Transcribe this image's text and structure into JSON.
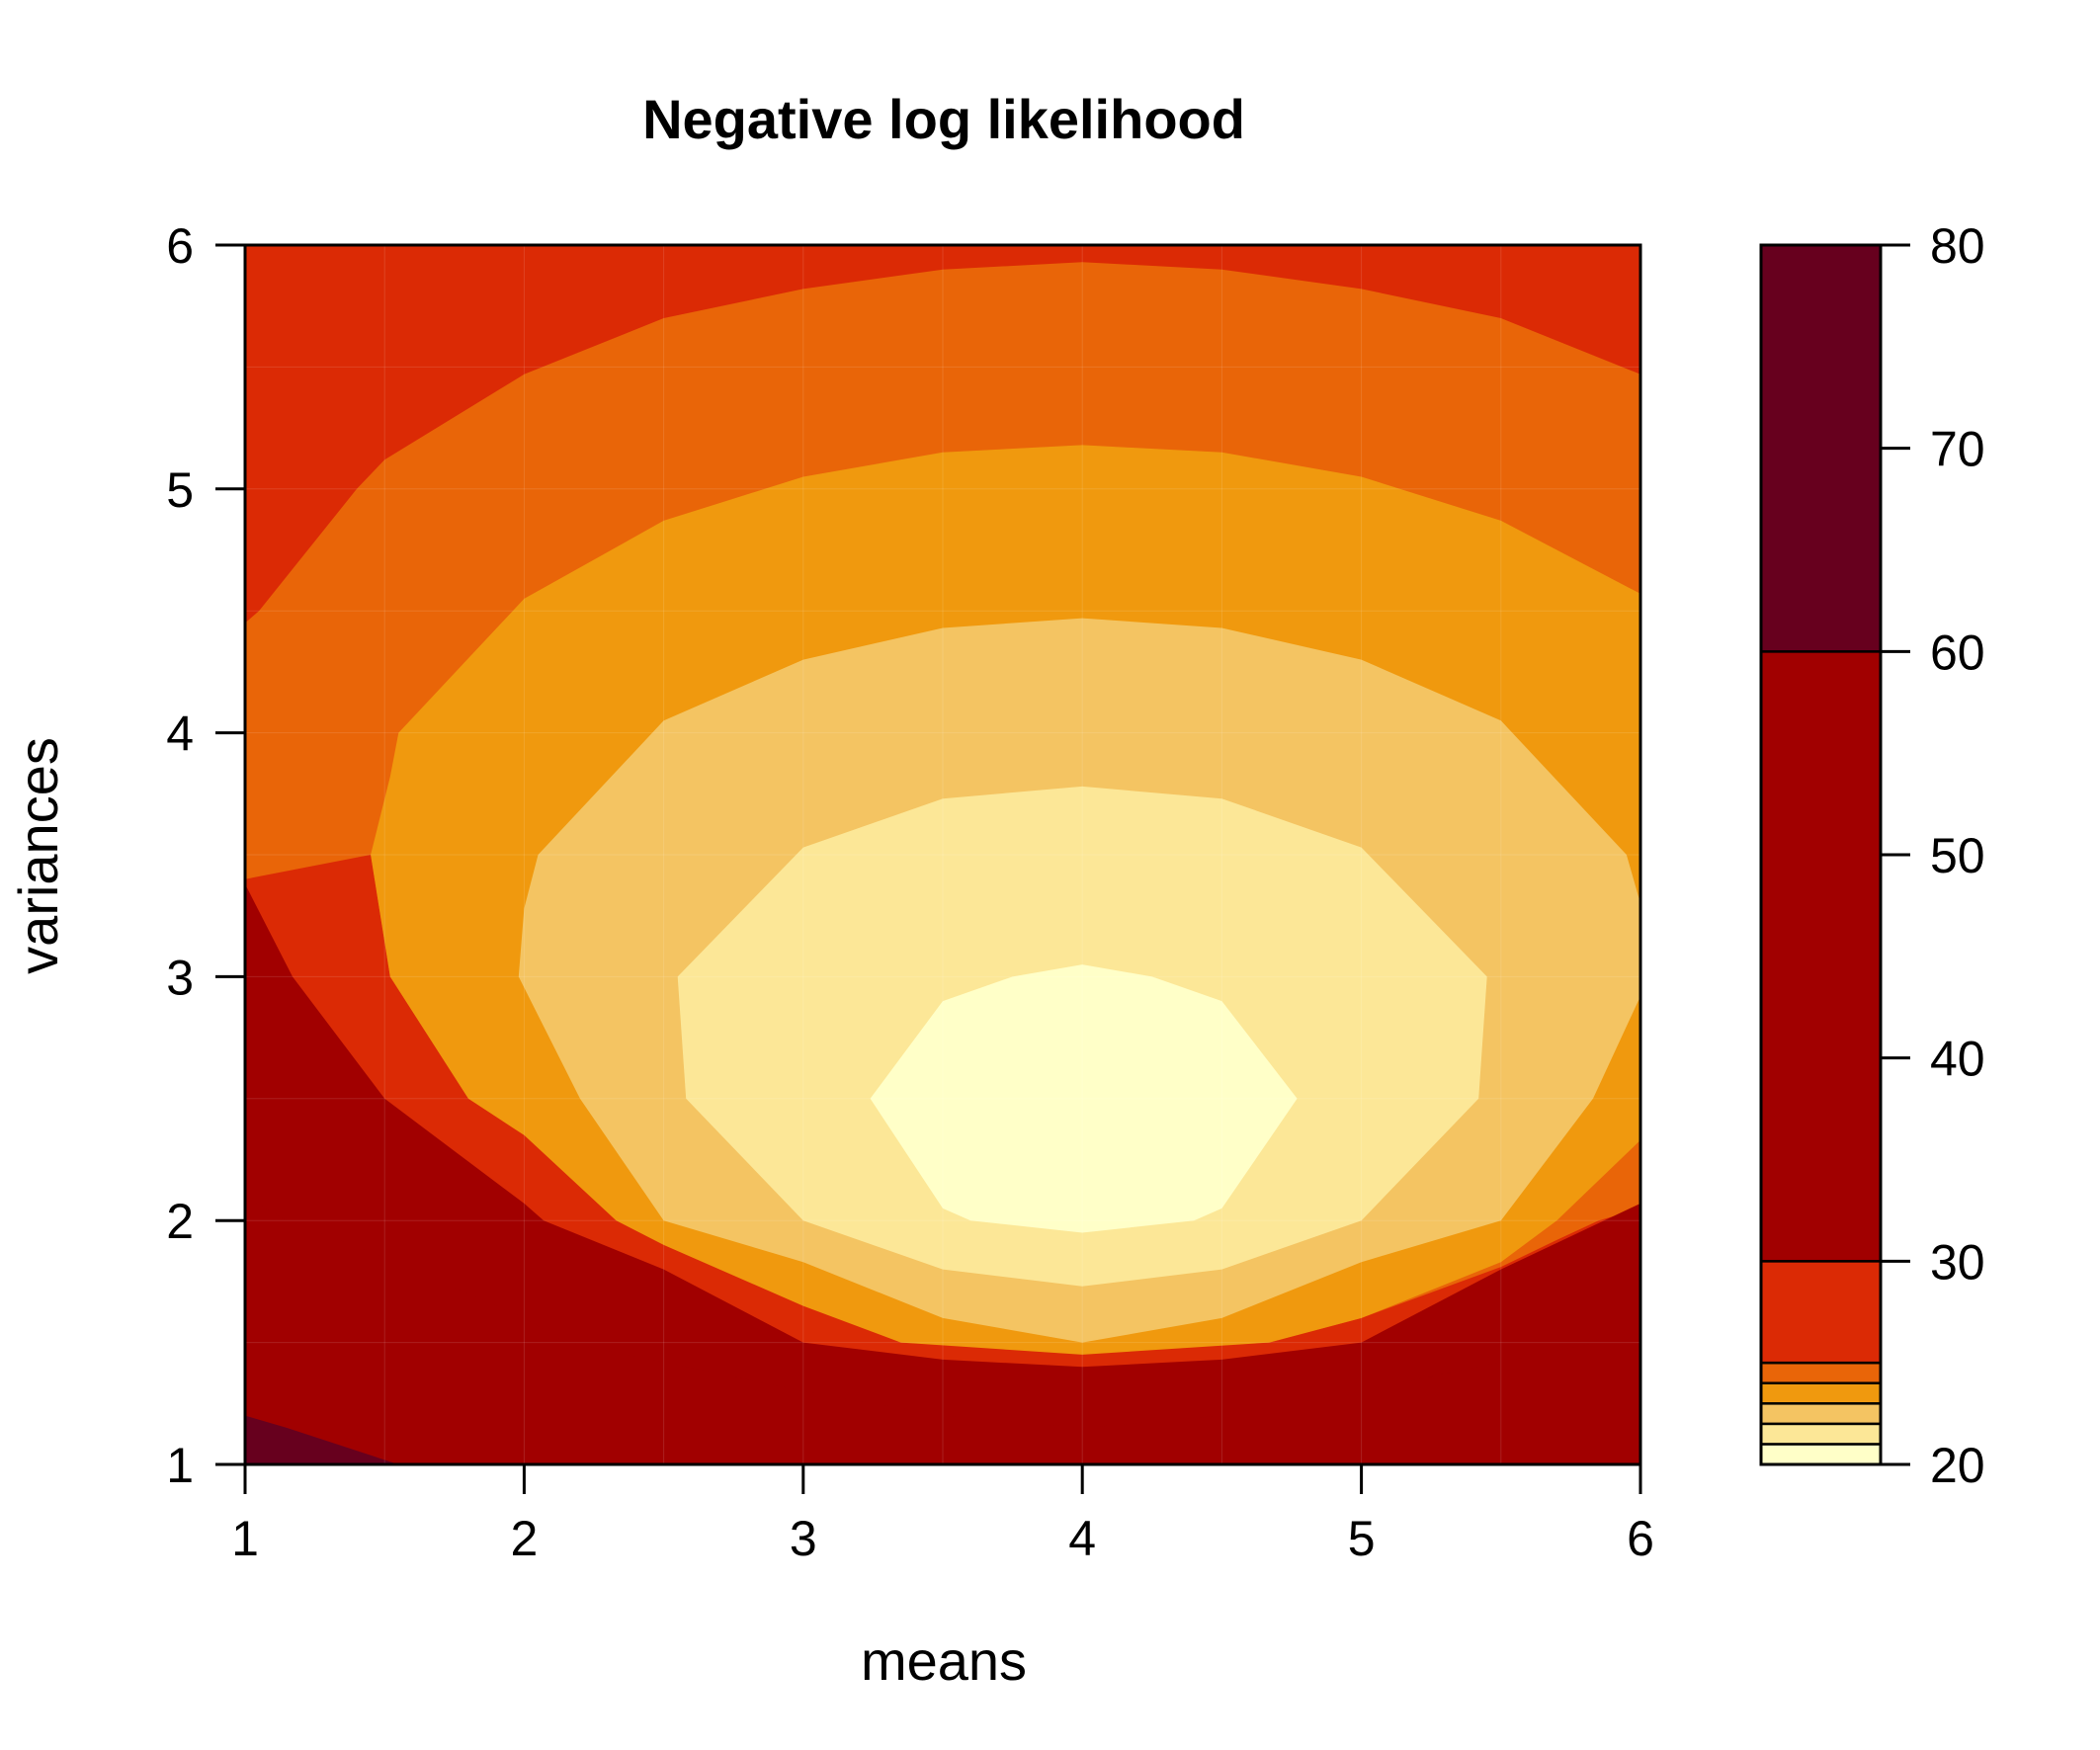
{
  "chart_data": {
    "type": "heatmap",
    "subtype": "filled-contour",
    "title": "Negative log likelihood",
    "xlabel": "means",
    "ylabel": "variances",
    "xlim": [
      1,
      6
    ],
    "ylim": [
      1,
      6
    ],
    "x_ticks": [
      "1",
      "2",
      "3",
      "4",
      "5",
      "6"
    ],
    "y_ticks": [
      "1",
      "2",
      "3",
      "4",
      "5",
      "6"
    ],
    "grid": true,
    "minimum": {
      "mean": 4,
      "variance": 2.5
    },
    "contour_levels": [
      20,
      21,
      22,
      23,
      24,
      25,
      30,
      60,
      80
    ],
    "level_bands": [
      {
        "range": [
          20,
          21
        ],
        "color": "#FFFFC8"
      },
      {
        "range": [
          21,
          22
        ],
        "color": "#FCE797"
      },
      {
        "range": [
          22,
          23
        ],
        "color": "#F4C462"
      },
      {
        "range": [
          23,
          24
        ],
        "color": "#F0990E"
      },
      {
        "range": [
          24,
          25
        ],
        "color": "#E96508"
      },
      {
        "range": [
          25,
          30
        ],
        "color": "#DB2A05"
      },
      {
        "range": [
          30,
          60
        ],
        "color": "#A10000"
      },
      {
        "range": [
          60,
          80
        ],
        "color": "#67001E"
      }
    ],
    "contours": [
      {
        "level": 21,
        "points": [
          [
            3.24,
            2.5
          ],
          [
            3.5,
            2.9
          ],
          [
            3.75,
            3
          ],
          [
            4,
            3.05
          ],
          [
            4.25,
            3
          ],
          [
            4.5,
            2.9
          ],
          [
            4.77,
            2.5
          ],
          [
            4.5,
            2.05
          ],
          [
            4.4,
            2
          ],
          [
            4,
            1.95
          ],
          [
            3.6,
            2
          ],
          [
            3.5,
            2.05
          ]
        ]
      },
      {
        "level": 22,
        "points": [
          [
            2.55,
            3
          ],
          [
            3,
            3.53
          ],
          [
            3.5,
            3.73
          ],
          [
            4,
            3.78
          ],
          [
            4.5,
            3.73
          ],
          [
            5,
            3.53
          ],
          [
            5.45,
            3
          ],
          [
            5.42,
            2.5
          ],
          [
            5,
            2
          ],
          [
            4.5,
            1.8
          ],
          [
            4,
            1.73
          ],
          [
            3.5,
            1.8
          ],
          [
            3,
            2
          ],
          [
            2.58,
            2.5
          ]
        ]
      },
      {
        "level": 23,
        "points": [
          [
            2.05,
            3.5
          ],
          [
            2.5,
            4.05
          ],
          [
            3,
            4.3
          ],
          [
            3.5,
            4.43
          ],
          [
            4,
            4.47
          ],
          [
            4.5,
            4.43
          ],
          [
            5,
            4.3
          ],
          [
            5.5,
            4.05
          ],
          [
            5.95,
            3.5
          ],
          [
            6,
            3.3
          ],
          [
            6,
            2.92
          ],
          [
            5.83,
            2.5
          ],
          [
            5.5,
            2
          ],
          [
            5,
            1.83
          ],
          [
            4.5,
            1.6
          ],
          [
            4,
            1.5
          ],
          [
            3.5,
            1.6
          ],
          [
            3,
            1.83
          ],
          [
            2.5,
            2
          ],
          [
            2.2,
            2.5
          ],
          [
            1.98,
            3
          ],
          [
            2,
            3.28
          ]
        ]
      },
      {
        "level": 24,
        "points": [
          [
            1.55,
            4
          ],
          [
            2,
            4.55
          ],
          [
            2.5,
            4.87
          ],
          [
            3,
            5.05
          ],
          [
            3.5,
            5.15
          ],
          [
            4,
            5.18
          ],
          [
            4.5,
            5.15
          ],
          [
            5,
            5.05
          ],
          [
            5.5,
            4.87
          ],
          [
            6,
            4.57
          ],
          [
            6,
            2.33
          ],
          [
            5.7,
            2
          ],
          [
            5.5,
            1.83
          ],
          [
            5,
            1.6
          ],
          [
            4.67,
            1.5
          ],
          [
            4,
            1.45
          ],
          [
            3.35,
            1.5
          ],
          [
            3,
            1.65
          ],
          [
            2.5,
            1.9
          ],
          [
            2.33,
            2
          ],
          [
            2,
            2.35
          ],
          [
            1.8,
            2.5
          ],
          [
            1.52,
            3
          ],
          [
            1.45,
            3.5
          ],
          [
            1.52,
            3.82
          ]
        ]
      },
      {
        "level": 25,
        "points": [
          [
            1,
            4.45
          ],
          [
            1.05,
            4.5
          ],
          [
            1.4,
            5
          ],
          [
            1.5,
            5.12
          ],
          [
            2,
            5.47
          ],
          [
            2.5,
            5.7
          ],
          [
            3,
            5.82
          ],
          [
            3.5,
            5.9
          ],
          [
            4,
            5.93
          ],
          [
            4.5,
            5.9
          ],
          [
            5,
            5.82
          ],
          [
            5.5,
            5.7
          ],
          [
            6,
            5.47
          ],
          [
            6,
            2.05
          ],
          [
            5.85,
            2
          ],
          [
            5.7,
            1.92
          ],
          [
            5.5,
            1.81
          ],
          [
            5,
            1.6
          ],
          [
            4.67,
            1.5
          ],
          [
            4,
            1.47
          ],
          [
            3.35,
            1.5
          ],
          [
            3,
            1.67
          ],
          [
            2.5,
            1.95
          ],
          [
            2.33,
            2
          ],
          [
            2,
            2.35
          ],
          [
            1.8,
            2.5
          ],
          [
            1.52,
            3
          ],
          [
            1.45,
            3.5
          ],
          [
            1,
            3.4
          ]
        ]
      },
      {
        "level": 30,
        "points": [
          [
            1,
            3.38
          ],
          [
            1.17,
            3
          ],
          [
            1.5,
            2.5
          ],
          [
            2,
            2.07
          ],
          [
            2.07,
            2
          ],
          [
            2.5,
            1.8
          ],
          [
            3,
            1.5
          ],
          [
            3.5,
            1.43
          ],
          [
            4,
            1.4
          ],
          [
            4.5,
            1.43
          ],
          [
            5,
            1.5
          ],
          [
            5.5,
            1.8
          ],
          [
            6,
            2.07
          ],
          [
            6,
            1
          ],
          [
            1,
            1
          ]
        ]
      },
      {
        "level": 60,
        "points": [
          [
            1,
            2.1
          ],
          [
            1.15,
            2
          ],
          [
            1.5,
            1.85
          ],
          [
            2,
            1.6
          ],
          [
            2.15,
            1.5
          ],
          [
            2.5,
            1.42
          ],
          [
            3,
            1.3
          ],
          [
            3.5,
            1.2
          ],
          [
            4,
            1.15
          ],
          [
            4.5,
            1.2
          ],
          [
            5,
            1.3
          ],
          [
            5.5,
            1.42
          ],
          [
            5.85,
            1.5
          ],
          [
            6,
            1.58
          ],
          [
            6,
            1
          ],
          [
            1,
            1
          ]
        ]
      },
      {
        "level": 80,
        "points": [
          [
            1,
            1.2
          ],
          [
            1.15,
            1.15
          ],
          [
            1.55,
            1
          ],
          [
            1,
            1
          ]
        ]
      }
    ],
    "colorbar": {
      "ticks": [
        "20",
        "30",
        "40",
        "50",
        "60",
        "70",
        "80"
      ],
      "range": [
        20,
        80
      ]
    }
  }
}
